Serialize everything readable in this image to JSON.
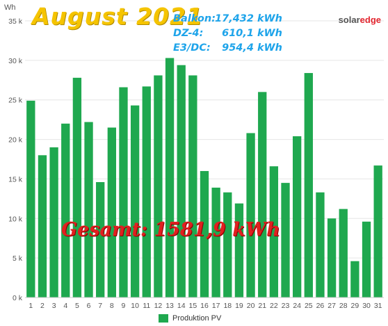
{
  "title": "August 2021",
  "logo": {
    "part_a": "solar",
    "part_b": "edge"
  },
  "stats": [
    {
      "label": "Balkon:",
      "value": "17,432 kWh"
    },
    {
      "label": "DZ-4:",
      "value": "610,1 kWh"
    },
    {
      "label": "E3/DC:",
      "value": "954,4 kWh"
    }
  ],
  "total": "Gesamt: 1581,9 kWh",
  "colors": {
    "bar": "#1fa84f",
    "grid": "#e6e6e6",
    "axis_text": "#555555"
  },
  "chart_data": {
    "type": "bar",
    "ylabel": "Wh",
    "ylim": [
      0,
      35000
    ],
    "yticks": [
      0,
      5000,
      10000,
      15000,
      20000,
      25000,
      30000,
      35000
    ],
    "ytick_labels": [
      "0 k",
      "5 k",
      "10 k",
      "15 k",
      "20 k",
      "25 k",
      "30 k",
      "35 k"
    ],
    "grid": true,
    "legend_position": "bottom-center",
    "categories": [
      "1",
      "2",
      "3",
      "4",
      "5",
      "6",
      "7",
      "8",
      "9",
      "10",
      "11",
      "12",
      "13",
      "14",
      "15",
      "16",
      "17",
      "18",
      "19",
      "20",
      "21",
      "22",
      "23",
      "24",
      "25",
      "26",
      "27",
      "28",
      "29",
      "30",
      "31"
    ],
    "series": [
      {
        "name": "Produktion PV",
        "values": [
          24900,
          18000,
          19000,
          22000,
          27800,
          22200,
          14600,
          21500,
          26600,
          24300,
          26700,
          28100,
          30300,
          29400,
          28100,
          16000,
          13900,
          13300,
          11900,
          20800,
          26000,
          16600,
          14500,
          20400,
          28400,
          13300,
          10000,
          11200,
          4600,
          9600,
          16700
        ]
      }
    ]
  }
}
